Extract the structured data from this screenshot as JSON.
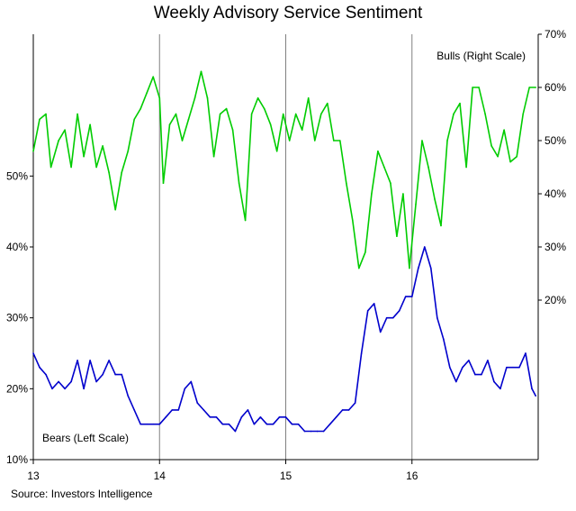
{
  "chart_data": {
    "type": "line",
    "title": "Weekly Advisory Service Sentiment",
    "source": "Source:  Investors Intelligence",
    "grid": "vertical at year boundaries",
    "x": {
      "ticks": [
        "13",
        "14",
        "15",
        "16"
      ],
      "range": [
        2013.0,
        2017.0
      ]
    },
    "left_axis": {
      "range": [
        10,
        70
      ],
      "ticks": [
        "10%",
        "20%",
        "30%",
        "40%",
        "50%"
      ]
    },
    "right_axis": {
      "range": [
        -10,
        70
      ],
      "ticks": [
        "20%",
        "30%",
        "40%",
        "50%",
        "60%",
        "70%"
      ]
    },
    "series": [
      {
        "name": "Bulls (Right Scale)",
        "axis": "right",
        "color": "#00cc00",
        "label_position": "top-right",
        "x": [
          2013.0,
          2013.05,
          2013.1,
          2013.14,
          2013.2,
          2013.25,
          2013.3,
          2013.35,
          2013.4,
          2013.45,
          2013.5,
          2013.55,
          2013.6,
          2013.65,
          2013.7,
          2013.75,
          2013.8,
          2013.85,
          2013.9,
          2013.95,
          2014.0,
          2014.03,
          2014.08,
          2014.13,
          2014.18,
          2014.23,
          2014.28,
          2014.33,
          2014.38,
          2014.43,
          2014.48,
          2014.53,
          2014.58,
          2014.63,
          2014.68,
          2014.73,
          2014.78,
          2014.83,
          2014.88,
          2014.93,
          2014.98,
          2015.03,
          2015.08,
          2015.13,
          2015.18,
          2015.23,
          2015.28,
          2015.33,
          2015.38,
          2015.43,
          2015.48,
          2015.53,
          2015.58,
          2015.63,
          2015.68,
          2015.73,
          2015.78,
          2015.83,
          2015.88,
          2015.93,
          2015.98,
          2016.03,
          2016.08,
          2016.13,
          2016.18,
          2016.23,
          2016.28,
          2016.33,
          2016.38,
          2016.43,
          2016.48,
          2016.53,
          2016.58,
          2016.63,
          2016.68,
          2016.73,
          2016.78,
          2016.83,
          2016.88,
          2016.93,
          2016.98
        ],
        "values": [
          48,
          54,
          55,
          45,
          50,
          52,
          45,
          55,
          47,
          53,
          45,
          49,
          44,
          37,
          44,
          48,
          54,
          56,
          59,
          62,
          58,
          42,
          53,
          55,
          50,
          54,
          58,
          63,
          58,
          47,
          55,
          56,
          52,
          42,
          35,
          55,
          58,
          56,
          53,
          48,
          55,
          50,
          55,
          52,
          58,
          50,
          55,
          57,
          50,
          50,
          42,
          35,
          26,
          29,
          40,
          48,
          45,
          42,
          32,
          40,
          26,
          38,
          50,
          45,
          39,
          34,
          50,
          55,
          57,
          45,
          60,
          60,
          55,
          49,
          47,
          52,
          46,
          47,
          55,
          60,
          60
        ]
      },
      {
        "name": "Bears (Left Scale)",
        "axis": "left",
        "color": "#0000cc",
        "label_position": "bottom-left",
        "x": [
          2013.0,
          2013.05,
          2013.1,
          2013.15,
          2013.2,
          2013.25,
          2013.3,
          2013.35,
          2013.4,
          2013.45,
          2013.5,
          2013.55,
          2013.6,
          2013.65,
          2013.7,
          2013.75,
          2013.8,
          2013.85,
          2013.9,
          2013.95,
          2014.0,
          2014.05,
          2014.1,
          2014.15,
          2014.2,
          2014.25,
          2014.3,
          2014.35,
          2014.4,
          2014.45,
          2014.5,
          2014.55,
          2014.6,
          2014.65,
          2014.7,
          2014.75,
          2014.8,
          2014.85,
          2014.9,
          2014.95,
          2015.0,
          2015.05,
          2015.1,
          2015.15,
          2015.2,
          2015.25,
          2015.3,
          2015.35,
          2015.4,
          2015.45,
          2015.5,
          2015.55,
          2015.6,
          2015.65,
          2015.7,
          2015.75,
          2015.8,
          2015.85,
          2015.9,
          2015.95,
          2016.0,
          2016.05,
          2016.1,
          2016.15,
          2016.2,
          2016.25,
          2016.3,
          2016.35,
          2016.4,
          2016.45,
          2016.5,
          2016.55,
          2016.6,
          2016.65,
          2016.7,
          2016.75,
          2016.8,
          2016.85,
          2016.9,
          2016.95,
          2016.98
        ],
        "values": [
          25,
          23,
          22,
          20,
          21,
          20,
          21,
          24,
          20,
          24,
          21,
          22,
          24,
          22,
          22,
          19,
          17,
          15,
          15,
          15,
          15,
          16,
          17,
          17,
          20,
          21,
          18,
          17,
          16,
          16,
          15,
          15,
          14,
          16,
          17,
          15,
          16,
          15,
          15,
          16,
          16,
          15,
          15,
          14,
          14,
          14,
          14,
          15,
          16,
          17,
          17,
          18,
          25,
          31,
          32,
          28,
          30,
          30,
          31,
          33,
          33,
          37,
          40,
          37,
          30,
          27,
          23,
          21,
          23,
          24,
          22,
          22,
          24,
          21,
          20,
          23,
          23,
          23,
          25,
          20,
          19
        ]
      }
    ]
  }
}
